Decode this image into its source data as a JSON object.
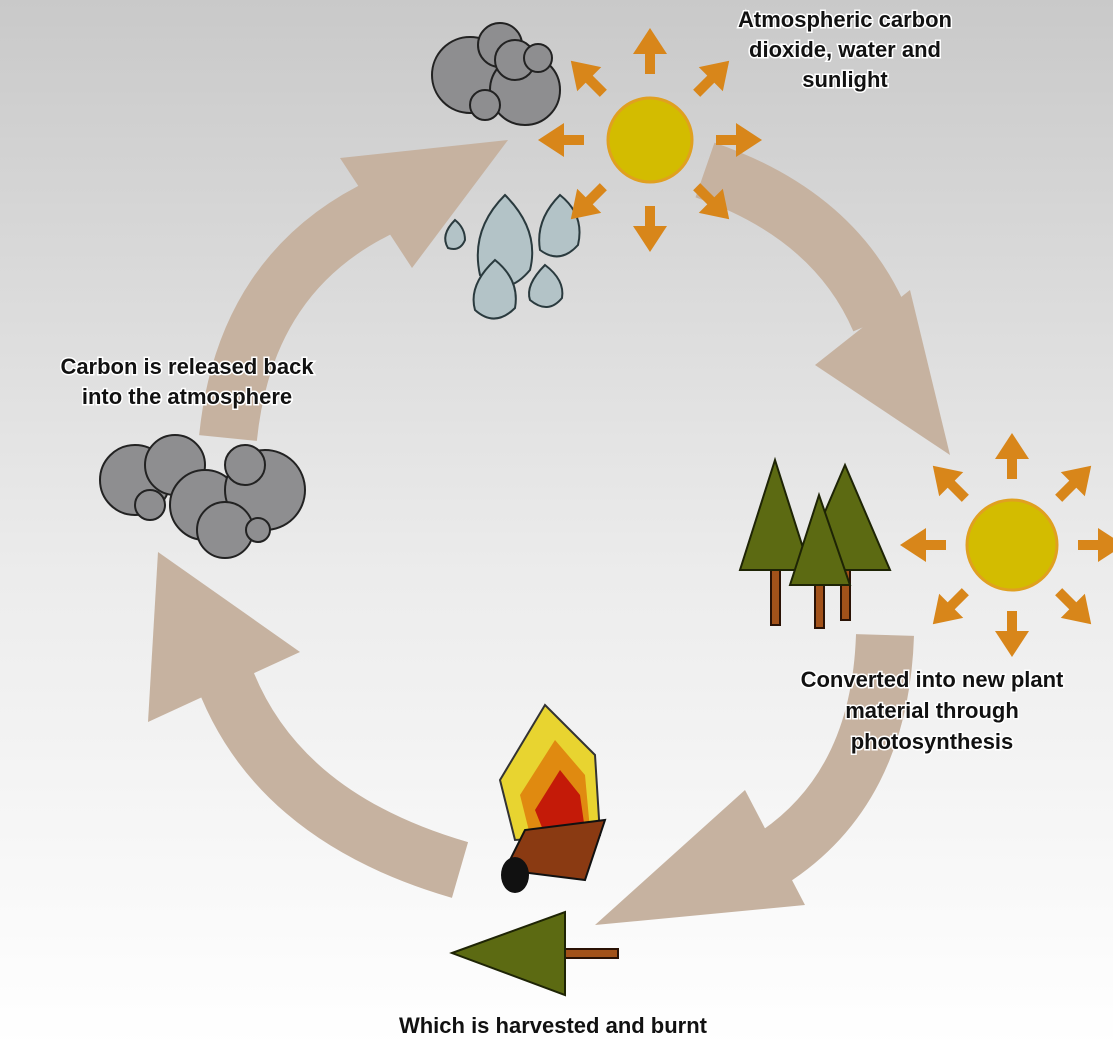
{
  "labels": [
    [
      "Atmospheric carbon",
      "dioxide, water and",
      "sunlight"
    ],
    [
      "Converted into new plant",
      "material through",
      "photosynthesis"
    ],
    [
      "Which is harvested and burnt"
    ],
    [
      "Carbon is released back",
      "into the atmosphere"
    ]
  ]
}
